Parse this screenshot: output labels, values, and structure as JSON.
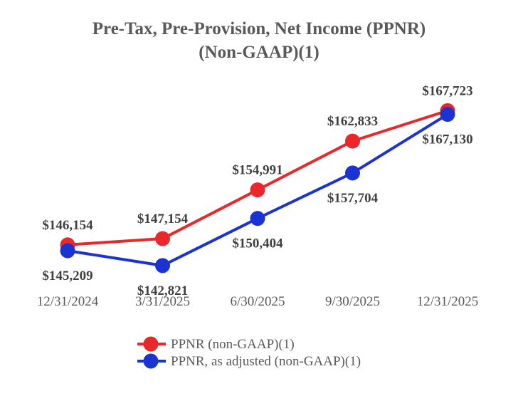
{
  "chart_data": {
    "type": "line",
    "title": [
      "Pre-Tax, Pre-Provision, Net Income (PPNR)",
      "(Non-GAAP)(1)"
    ],
    "categories": [
      "12/31/2024",
      "3/31/2025",
      "6/30/2025",
      "9/30/2025",
      "12/31/2025"
    ],
    "ylim": [
      138000,
      172000
    ],
    "grid": false,
    "legend_position": "bottom",
    "series": [
      {
        "name": "PPNR (non-GAAP)(1)",
        "color": "#e8282b",
        "values": [
          146154,
          147154,
          154991,
          162833,
          167723
        ],
        "labels": [
          "$146,154",
          "$147,154",
          "$154,991",
          "$162,833",
          "$167,723"
        ],
        "label_side": "above"
      },
      {
        "name": "PPNR, as adjusted (non-GAAP)(1)",
        "color": "#1c33d4",
        "values": [
          145209,
          142821,
          150404,
          157704,
          167130
        ],
        "labels": [
          "$145,209",
          "$142,821",
          "$150,404",
          "$157,704",
          "$167,130"
        ],
        "label_side": "below"
      }
    ]
  }
}
